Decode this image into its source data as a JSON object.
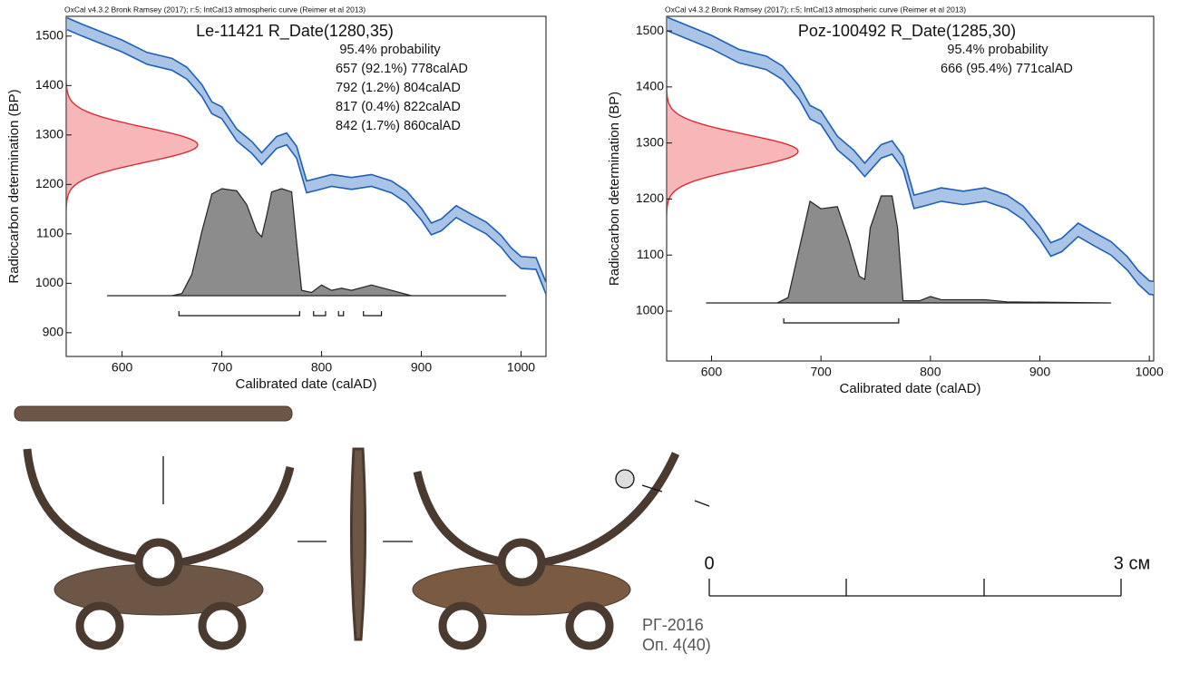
{
  "chart_data": [
    {
      "type": "oxcal",
      "header": "OxCal v4.3.2 Bronk Ramsey (2017); r:5; IntCal13 atmospheric curve (Reimer et al 2013)",
      "title": "Le-11421 R_Date(1280,35)",
      "mean": 1280,
      "sd": 35,
      "probability_label": "95.4% probability",
      "ranges": [
        {
          "from": 657,
          "to": 778,
          "percent": 92.1,
          "label": "657 (92.1%) 778calAD"
        },
        {
          "from": 792,
          "to": 804,
          "percent": 1.2,
          "label": "792 (1.2%) 804calAD"
        },
        {
          "from": 817,
          "to": 822,
          "percent": 0.4,
          "label": "817 (0.4%) 822calAD"
        },
        {
          "from": 842,
          "to": 860,
          "percent": 1.7,
          "label": "842 (1.7%) 860calAD"
        }
      ],
      "x_label": "Calibrated date (calAD)",
      "y_label": "Radiocarbon determination (BP)",
      "xlim": [
        544,
        1025
      ],
      "ylim": [
        852,
        1540
      ],
      "xticks": [
        600,
        700,
        800,
        900,
        1000
      ],
      "yticks": [
        900,
        1000,
        1100,
        1200,
        1300,
        1400,
        1500
      ],
      "curve": {
        "color": "#1f5fb5",
        "fill": "#a9c4e6",
        "x": [
          545,
          560,
          575,
          600,
          625,
          650,
          665,
          680,
          690,
          700,
          715,
          730,
          740,
          755,
          765,
          775,
          785,
          795,
          810,
          830,
          850,
          870,
          885,
          900,
          910,
          920,
          935,
          950,
          965,
          980,
          990,
          1000,
          1015,
          1025
        ],
        "upper": [
          1537,
          1524,
          1512,
          1492,
          1467,
          1455,
          1437,
          1402,
          1367,
          1357,
          1312,
          1287,
          1264,
          1297,
          1304,
          1277,
          1207,
          1212,
          1220,
          1214,
          1220,
          1207,
          1187,
          1152,
          1122,
          1130,
          1157,
          1140,
          1124,
          1097,
          1072,
          1054,
          1052,
          1002
        ],
        "lower": [
          1513,
          1500,
          1488,
          1468,
          1443,
          1431,
          1413,
          1378,
          1343,
          1333,
          1288,
          1263,
          1240,
          1273,
          1280,
          1253,
          1183,
          1188,
          1196,
          1190,
          1196,
          1183,
          1163,
          1128,
          1098,
          1106,
          1133,
          1116,
          1100,
          1073,
          1048,
          1030,
          1028,
          978
        ]
      },
      "radiocarbon_color": "#e0202a",
      "radiocarbon_fill": "#f7b6b8",
      "calibrated": {
        "color": "#8c8c8c",
        "x": [
          585,
          650,
          660,
          670,
          680,
          690,
          700,
          715,
          725,
          735,
          740,
          745,
          750,
          760,
          770,
          775,
          780,
          790,
          800,
          810,
          820,
          830,
          850,
          870,
          890,
          985
        ],
        "density": [
          0,
          0,
          0.02,
          0.2,
          0.6,
          0.95,
          1.0,
          0.98,
          0.85,
          0.6,
          0.55,
          0.75,
          0.97,
          1.0,
          0.97,
          0.5,
          0.05,
          0.03,
          0.1,
          0.05,
          0.07,
          0.05,
          0.1,
          0.05,
          0,
          0
        ]
      }
    },
    {
      "type": "oxcal",
      "header": "OxCal v4.3.2 Bronk Ramsey (2017); r:5; IntCal13 atmospheric curve (Reimer et al 2013)",
      "title": "Poz-100492 R_Date(1285,30)",
      "mean": 1285,
      "sd": 30,
      "probability_label": "95.4% probability",
      "ranges": [
        {
          "from": 666,
          "to": 771,
          "percent": 95.4,
          "label": "666 (95.4%) 771calAD"
        }
      ],
      "x_label": "Calibrated date (calAD)",
      "y_label": "Radiocarbon determination (BP)",
      "xlim": [
        559,
        1004
      ],
      "ylim": [
        911,
        1526
      ],
      "xticks": [
        600,
        700,
        800,
        900,
        1000
      ],
      "yticks": [
        1000,
        1100,
        1200,
        1300,
        1400,
        1500
      ],
      "curve": {
        "color": "#1f5fb5",
        "fill": "#a9c4e6",
        "x": [
          560,
          575,
          600,
          625,
          650,
          665,
          680,
          690,
          700,
          715,
          730,
          740,
          755,
          765,
          775,
          785,
          795,
          810,
          830,
          850,
          870,
          885,
          900,
          910,
          920,
          935,
          950,
          965,
          980,
          990,
          1000,
          1004
        ],
        "upper": [
          1524,
          1512,
          1492,
          1467,
          1455,
          1437,
          1402,
          1367,
          1357,
          1312,
          1287,
          1264,
          1297,
          1304,
          1277,
          1207,
          1212,
          1220,
          1214,
          1220,
          1207,
          1187,
          1152,
          1122,
          1130,
          1157,
          1140,
          1124,
          1097,
          1072,
          1054,
          1053
        ],
        "lower": [
          1500,
          1488,
          1468,
          1443,
          1431,
          1413,
          1378,
          1343,
          1333,
          1288,
          1263,
          1240,
          1273,
          1280,
          1253,
          1183,
          1188,
          1196,
          1190,
          1196,
          1183,
          1163,
          1128,
          1098,
          1106,
          1133,
          1116,
          1100,
          1073,
          1048,
          1030,
          1029
        ]
      },
      "radiocarbon_color": "#e0202a",
      "radiocarbon_fill": "#f7b6b8",
      "calibrated": {
        "color": "#8c8c8c",
        "x": [
          595,
          660,
          670,
          680,
          690,
          700,
          715,
          725,
          735,
          740,
          745,
          755,
          765,
          770,
          775,
          790,
          800,
          810,
          850,
          870,
          965
        ],
        "density": [
          0,
          0,
          0.05,
          0.5,
          0.95,
          0.88,
          0.9,
          0.6,
          0.25,
          0.22,
          0.7,
          1.0,
          1.0,
          0.7,
          0.02,
          0.02,
          0.06,
          0.03,
          0.03,
          0.01,
          0
        ]
      }
    }
  ],
  "artifact": {
    "scale_start": "0",
    "scale_end": "3 см",
    "find_code": "РГ-2016",
    "find_context": "Оп. 4(40)"
  }
}
